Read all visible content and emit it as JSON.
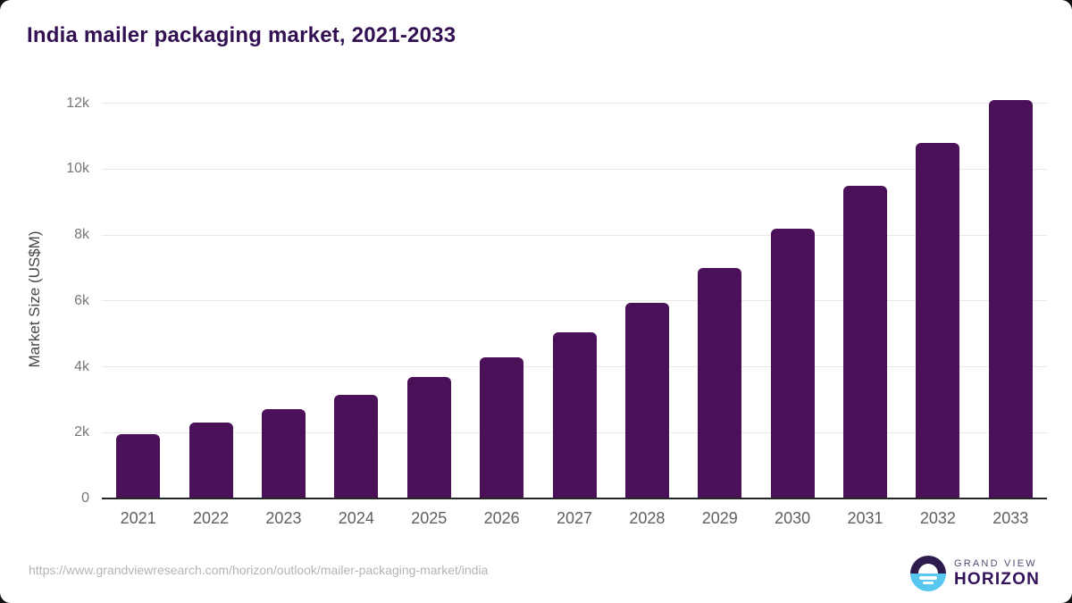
{
  "page": {
    "title": "India mailer packaging market, 2021-2033"
  },
  "chart_data": {
    "type": "bar",
    "title": "India mailer packaging market, 2021-2033",
    "categories": [
      "2021",
      "2022",
      "2023",
      "2024",
      "2025",
      "2026",
      "2027",
      "2028",
      "2029",
      "2030",
      "2031",
      "2032",
      "2033"
    ],
    "values": [
      1950,
      2300,
      2700,
      3150,
      3700,
      4300,
      5050,
      5950,
      7000,
      8200,
      9500,
      10800,
      12100
    ],
    "xlabel": "",
    "ylabel": "Market Size (US$M)",
    "ylim": [
      0,
      12100
    ],
    "yticks": [
      {
        "value": 0,
        "label": "0"
      },
      {
        "value": 2000,
        "label": "2k"
      },
      {
        "value": 4000,
        "label": "4k"
      },
      {
        "value": 6000,
        "label": "6k"
      },
      {
        "value": 8000,
        "label": "8k"
      },
      {
        "value": 10000,
        "label": "10k"
      },
      {
        "value": 12000,
        "label": "12k"
      }
    ],
    "grid": true,
    "legend_position": "none",
    "bar_color": "#4a1158"
  },
  "footer": {
    "source_url": "https://www.grandviewresearch.com/horizon/outlook/mailer-packaging-market/india",
    "logo": {
      "brand_line1": "GRAND VIEW",
      "brand_line2": "HORIZON"
    }
  },
  "colors": {
    "bar": "#4a1158",
    "title_text": "#331052",
    "y_tick_text": "#767676",
    "x_tick_text": "#5f5f5f",
    "gridline": "#e8e8e8",
    "axis_line": "#262626",
    "url_text": "#b4b4b4",
    "logo_purple": "#2d1b4e",
    "logo_blue": "#57c7f0"
  }
}
